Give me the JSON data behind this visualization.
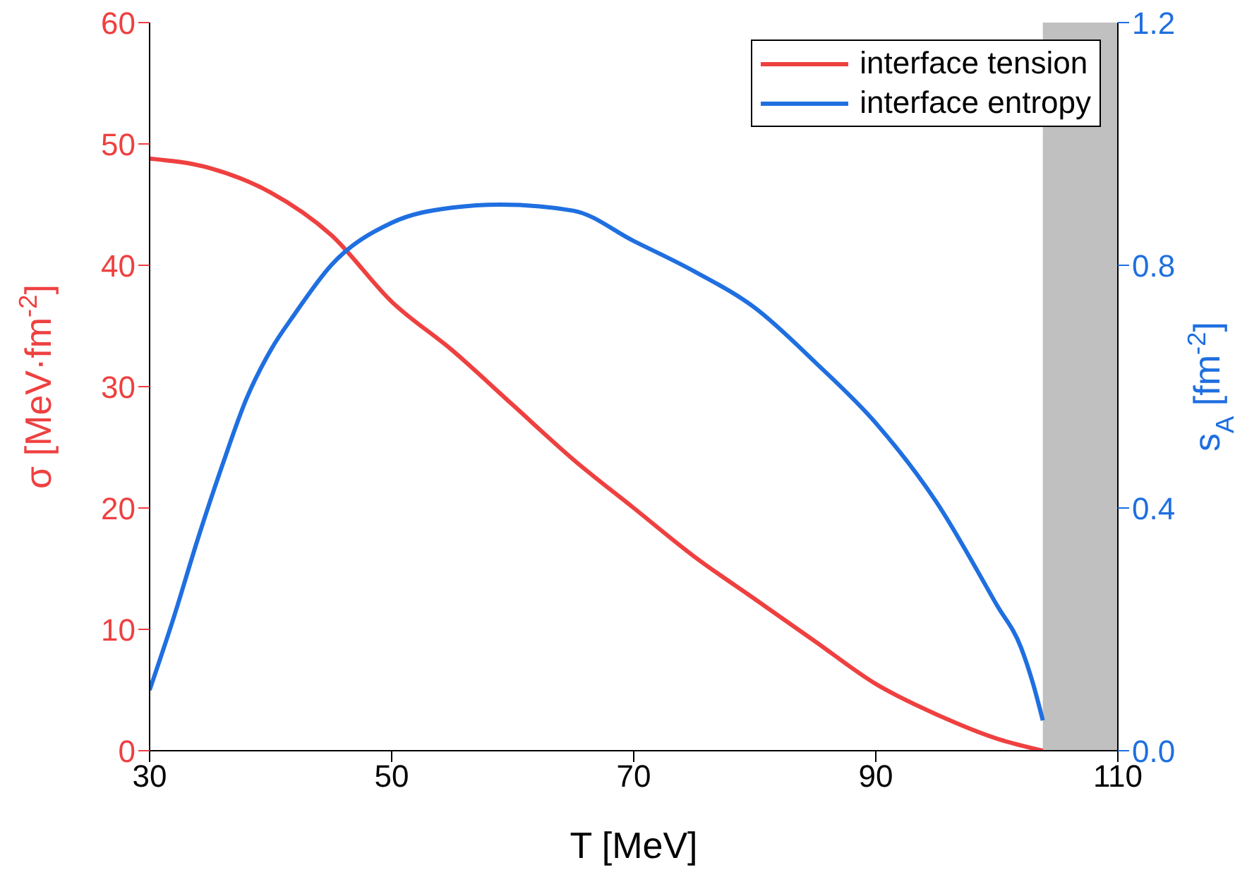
{
  "chart_data": {
    "type": "line",
    "xlabel": "T [MeV]",
    "ylabel": "σ [MeV·fm$^{-2}$]",
    "y2label": "s$_{A}$ [fm$^{-2}$]",
    "xlim": [
      30,
      110
    ],
    "xticks": [
      30,
      50,
      70,
      90,
      110
    ],
    "ylim": [
      0,
      60
    ],
    "yticks": [
      0,
      10,
      20,
      30,
      40,
      50,
      60
    ],
    "y2lim": [
      0,
      1.2
    ],
    "y2ticks": [
      {
        "value": 0,
        "label": "0.0"
      },
      {
        "value": 0.4,
        "label": "0.4"
      },
      {
        "value": 0.8,
        "label": "0.8"
      },
      {
        "value": 1.2,
        "label": "1.2"
      }
    ],
    "legend": "top right",
    "marker": "none",
    "line_style": "solid",
    "bands": [
      {
        "axis": "x",
        "from": 103.8,
        "to": 110,
        "color": "#c0c0c0"
      }
    ],
    "series": [
      {
        "name": "interface tension",
        "color": "#ef4040",
        "x": [
          30,
          35,
          40,
          45,
          50,
          55,
          60,
          65,
          70,
          75,
          80,
          85,
          90,
          95,
          100,
          103.8
        ],
        "values": [
          48.8,
          48,
          46,
          42.5,
          37,
          33,
          28.5,
          24,
          20,
          16,
          12.5,
          9,
          5.5,
          3,
          1,
          0
        ]
      },
      {
        "name": "interface entropy",
        "color": "#1f6fe0",
        "axis": "y2",
        "x": [
          30,
          32,
          34,
          36,
          38,
          40,
          42,
          45,
          50,
          55,
          59,
          65,
          70,
          75,
          80,
          85,
          90,
          95,
          100,
          102,
          103,
          103.8
        ],
        "values": [
          0.1,
          0.22,
          0.35,
          0.47,
          0.58,
          0.66,
          0.72,
          0.8,
          0.87,
          0.895,
          0.9,
          0.89,
          0.84,
          0.79,
          0.73,
          0.64,
          0.54,
          0.41,
          0.24,
          0.17,
          0.11,
          0.05
        ]
      }
    ]
  }
}
